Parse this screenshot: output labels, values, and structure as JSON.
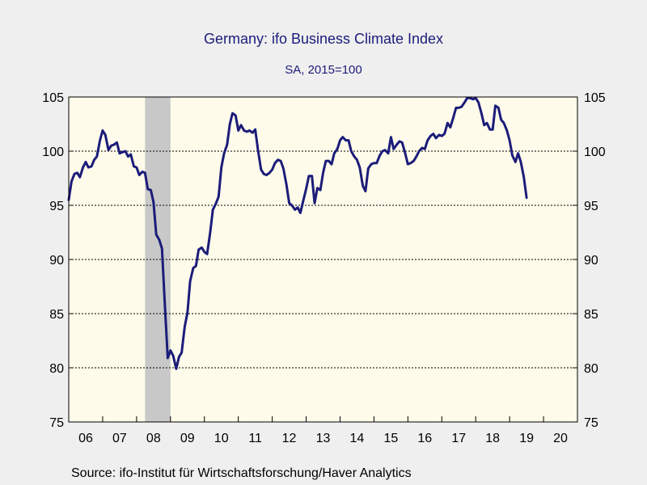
{
  "header": {
    "title": "Germany: ifo Business Climate Index",
    "subtitle": "SA, 2015=100"
  },
  "footer": {
    "source": "Source:  ifo-Institut für Wirtschaftsforschung/Haver Analytics"
  },
  "colors": {
    "line": "#1c1c7a",
    "plot_background": "#fffbea",
    "recession_band": "#c8c8c8",
    "page_background": "#efefef"
  },
  "chart_data": {
    "type": "line",
    "title": "Germany: ifo Business Climate Index",
    "subtitle": "SA, 2015=100",
    "xlabel": "",
    "ylabel": "",
    "ylim": [
      75,
      105
    ],
    "xlim": [
      2006.0,
      2021.0
    ],
    "y_ticks": [
      75,
      80,
      85,
      90,
      95,
      100,
      105
    ],
    "y_ticks_labeled_right_too": true,
    "x_tick_labels": [
      "06",
      "07",
      "08",
      "09",
      "10",
      "11",
      "12",
      "13",
      "14",
      "15",
      "16",
      "17",
      "18",
      "19",
      "20"
    ],
    "grid": "horizontal dashed at 80, 85, 90, 95, 100",
    "shaded_regions": [
      {
        "from": 2008.25,
        "to": 2009.0,
        "meaning": "recession"
      }
    ],
    "series": [
      {
        "x": [
          2006.0,
          2006.08,
          2006.17,
          2006.25,
          2006.33,
          2006.42,
          2006.5,
          2006.58,
          2006.67,
          2006.75,
          2006.83,
          2006.92,
          2007.0,
          2007.08,
          2007.17,
          2007.25,
          2007.33,
          2007.42,
          2007.5,
          2007.58,
          2007.67,
          2007.75,
          2007.83,
          2007.92,
          2008.0,
          2008.08,
          2008.17,
          2008.25,
          2008.33,
          2008.42,
          2008.5,
          2008.58,
          2008.67,
          2008.75,
          2008.83,
          2008.92,
          2009.0,
          2009.08,
          2009.17,
          2009.25,
          2009.33,
          2009.42,
          2009.5,
          2009.58,
          2009.67,
          2009.75,
          2009.83,
          2009.92,
          2010.0,
          2010.08,
          2010.17,
          2010.25,
          2010.33,
          2010.42,
          2010.5,
          2010.58,
          2010.67,
          2010.75,
          2010.83,
          2010.92,
          2011.0,
          2011.08,
          2011.17,
          2011.25,
          2011.33,
          2011.42,
          2011.5,
          2011.58,
          2011.67,
          2011.75,
          2011.83,
          2011.92,
          2012.0,
          2012.08,
          2012.17,
          2012.25,
          2012.33,
          2012.42,
          2012.5,
          2012.58,
          2012.67,
          2012.75,
          2012.83,
          2012.92,
          2013.0,
          2013.08,
          2013.17,
          2013.25,
          2013.33,
          2013.42,
          2013.5,
          2013.58,
          2013.67,
          2013.75,
          2013.83,
          2013.92,
          2014.0,
          2014.08,
          2014.17,
          2014.25,
          2014.33,
          2014.42,
          2014.5,
          2014.58,
          2014.67,
          2014.75,
          2014.83,
          2014.92,
          2015.0,
          2015.08,
          2015.17,
          2015.25,
          2015.33,
          2015.42,
          2015.5,
          2015.58,
          2015.67,
          2015.75,
          2015.83,
          2015.92,
          2016.0,
          2016.08,
          2016.17,
          2016.25,
          2016.33,
          2016.42,
          2016.5,
          2016.58,
          2016.67,
          2016.75,
          2016.83,
          2016.92,
          2017.0,
          2017.08,
          2017.17,
          2017.25,
          2017.33,
          2017.42,
          2017.5,
          2017.58,
          2017.67,
          2017.75,
          2017.83,
          2017.92,
          2018.0,
          2018.08,
          2018.17,
          2018.25,
          2018.33,
          2018.42,
          2018.5,
          2018.58,
          2018.67,
          2018.75,
          2018.83,
          2018.92,
          2019.0,
          2019.08,
          2019.17,
          2019.25,
          2019.33,
          2019.42,
          2019.5
        ],
        "values": [
          95.5,
          97.2,
          97.9,
          98.0,
          97.6,
          98.5,
          99.0,
          98.5,
          98.6,
          99.2,
          99.5,
          101.0,
          101.9,
          101.5,
          100.1,
          100.5,
          100.6,
          100.8,
          99.8,
          99.9,
          100.0,
          99.5,
          99.7,
          98.6,
          98.5,
          97.8,
          98.1,
          98.0,
          96.5,
          96.4,
          95.3,
          92.3,
          91.8,
          91.0,
          86.0,
          80.9,
          81.6,
          81.1,
          79.9,
          81.0,
          81.4,
          83.8,
          85.1,
          88.0,
          89.2,
          89.4,
          90.9,
          91.1,
          90.7,
          90.5,
          92.5,
          94.6,
          95.1,
          95.8,
          98.5,
          99.8,
          100.6,
          102.5,
          103.5,
          103.3,
          101.9,
          102.4,
          101.9,
          101.8,
          101.9,
          101.7,
          102.0,
          100.1,
          98.3,
          97.9,
          97.8,
          98.0,
          98.3,
          98.9,
          99.2,
          99.1,
          98.4,
          96.9,
          95.2,
          95.0,
          94.6,
          94.8,
          94.3,
          95.5,
          96.5,
          97.7,
          97.7,
          95.2,
          96.6,
          96.4,
          98.0,
          99.1,
          99.1,
          98.8,
          99.8,
          100.2,
          101.0,
          101.3,
          101.0,
          101.0,
          100.0,
          99.5,
          99.2,
          98.5,
          96.8,
          96.3,
          98.4,
          98.8,
          98.9,
          98.9,
          99.6,
          100.0,
          100.1,
          99.8,
          101.3,
          100.2,
          100.6,
          100.9,
          100.8,
          99.8,
          98.8,
          98.9,
          99.1,
          99.5,
          100.0,
          100.3,
          100.2,
          101.0,
          101.4,
          101.6,
          101.2,
          101.5,
          101.4,
          101.6,
          102.6,
          102.2,
          103.0,
          104.0,
          104.0,
          104.1,
          104.5,
          104.9,
          104.9,
          104.8,
          104.9,
          104.5,
          103.5,
          102.4,
          102.6,
          102.0,
          102.0,
          104.2,
          104.0,
          102.9,
          102.6,
          101.9,
          101.0,
          99.6,
          99.0,
          99.8,
          99.0,
          97.6,
          95.7
        ]
      }
    ]
  }
}
